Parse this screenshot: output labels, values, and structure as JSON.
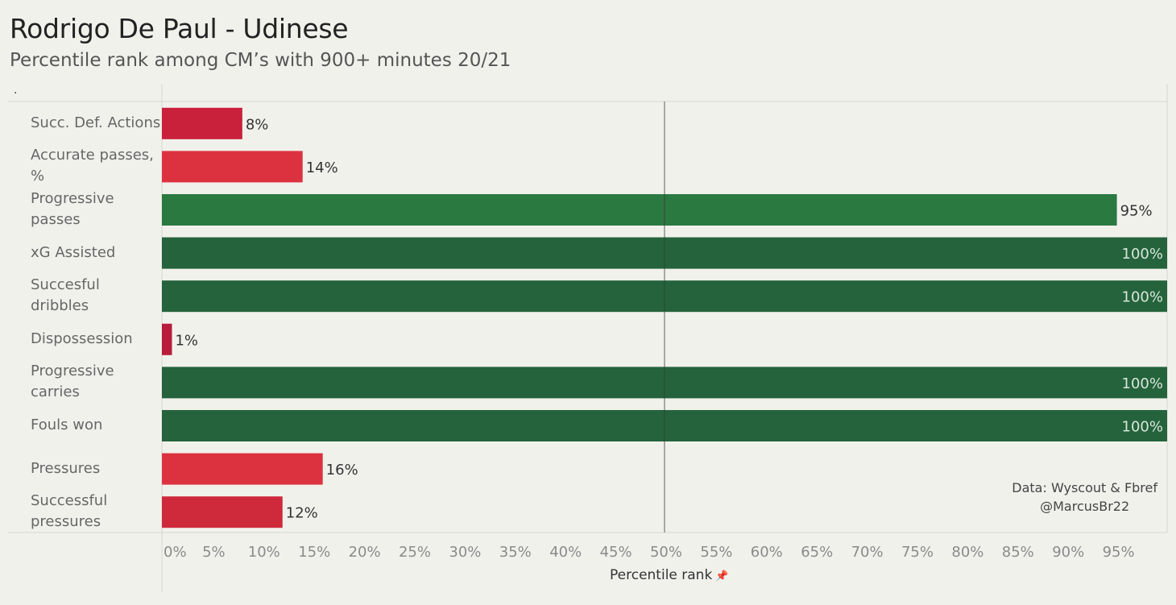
{
  "title": "Rodrigo De Paul - Udinese",
  "subtitle": "Percentile rank among CM’s with 900+ minutes 20/21",
  "header_label": ".",
  "annotation": {
    "line1": "Data: Wyscout & Fbref",
    "line2": "@MarcusBr22"
  },
  "colors": {
    "background": "#f1f1ec",
    "green_high": "#24633b",
    "green_mid": "#2a7941",
    "red_mid": "#dc3240",
    "red_dark": "#c9203b"
  },
  "chart_data": {
    "type": "bar",
    "orientation": "horizontal",
    "title": "Rodrigo De Paul - Udinese",
    "subtitle": "Percentile rank among CM’s with 900+ minutes 20/21",
    "xlabel": "Percentile rank",
    "ylabel": "",
    "xlim": [
      0,
      100
    ],
    "reference_line": 50,
    "grid": false,
    "categories": [
      [
        "Succ. Def. Actions"
      ],
      [
        "Accurate passes,",
        "%"
      ],
      [
        "Progressive",
        "passes"
      ],
      [
        "xG Assisted"
      ],
      [
        "Succesful dribbles"
      ],
      [
        "Dispossession"
      ],
      [
        "Progressive",
        "carries"
      ],
      [
        "Fouls won"
      ],
      [
        "Pressures"
      ],
      [
        "Successful",
        "pressures"
      ]
    ],
    "values": [
      8,
      14,
      95,
      100,
      100,
      1,
      100,
      100,
      16,
      12
    ],
    "data_labels": [
      "8%",
      "14%",
      "95%",
      "100%",
      "100%",
      "1%",
      "100%",
      "100%",
      "16%",
      "12%"
    ],
    "bar_colors": [
      "#c9203b",
      "#dc3240",
      "#2a7941",
      "#24633b",
      "#24633b",
      "#b81c3a",
      "#24633b",
      "#24633b",
      "#dc3240",
      "#cf2a3c"
    ],
    "x_ticks": [
      "0%",
      "5%",
      "10%",
      "15%",
      "20%",
      "25%",
      "30%",
      "35%",
      "40%",
      "45%",
      "50%",
      "55%",
      "60%",
      "65%",
      "70%",
      "75%",
      "80%",
      "85%",
      "90%",
      "95%"
    ],
    "x_tick_values": [
      0,
      5,
      10,
      15,
      20,
      25,
      30,
      35,
      40,
      45,
      50,
      55,
      60,
      65,
      70,
      75,
      80,
      85,
      90,
      95
    ]
  }
}
